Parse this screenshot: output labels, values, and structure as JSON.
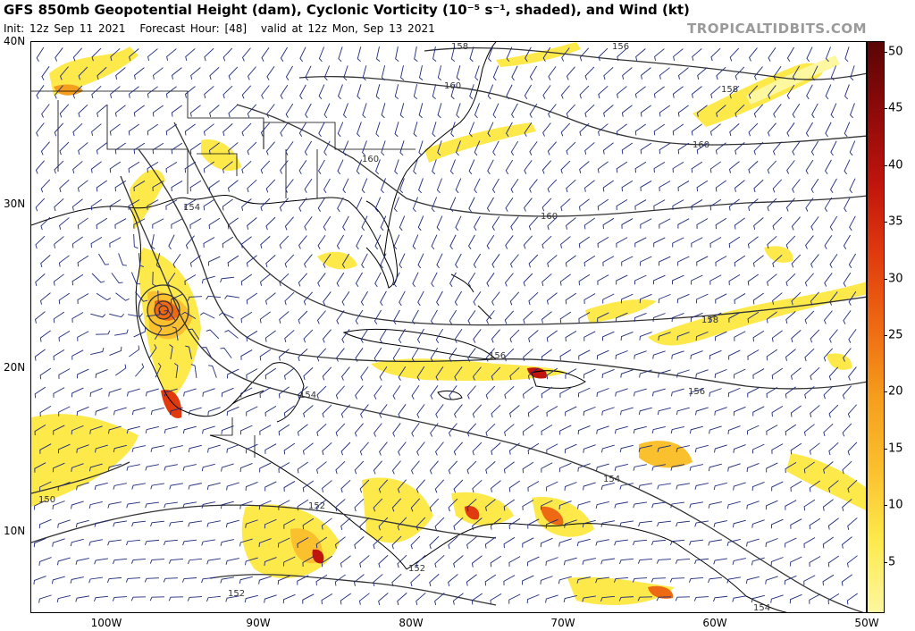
{
  "header": {
    "title": "GFS 850mb Geopotential Height (dam), Cyclonic Vorticity (10⁻⁵ s⁻¹, shaded), and Wind (kt)",
    "init": "Init: 12z Sep 11 2021",
    "forecast_hour": "Forecast Hour: [48]",
    "valid": "valid at 12z Mon, Sep 13 2021",
    "brand": "TROPICALTIDBITS.COM"
  },
  "axes": {
    "lat_labels": [
      "40N",
      "30N",
      "20N",
      "10N"
    ],
    "lon_labels": [
      "100W",
      "90W",
      "80W",
      "70W",
      "60W",
      "50W"
    ]
  },
  "colorbar": {
    "labels": [
      "50",
      "45",
      "40",
      "35",
      "30",
      "25",
      "20",
      "15",
      "10",
      "5"
    ],
    "stops": [
      "#fdf7a0",
      "#fde94a",
      "#fbc02d",
      "#f59d1c",
      "#ee6a12",
      "#e03a0e",
      "#c0150c",
      "#8d0a09",
      "#5a0505"
    ]
  },
  "contour_labels": [
    "158",
    "156",
    "160",
    "158",
    "160",
    "160",
    "160",
    "158",
    "154",
    "156",
    "156",
    "154",
    "154",
    "150",
    "152",
    "152",
    "152",
    "154"
  ],
  "colors": {
    "contour": "#333333",
    "barb": "#1f2a7a",
    "coast": "#000000",
    "border": "#8a8a8a"
  }
}
